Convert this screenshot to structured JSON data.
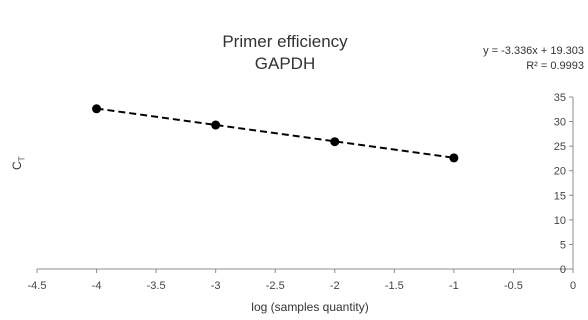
{
  "chart_data": {
    "type": "scatter",
    "title": "Primer efficiency",
    "subtitle": "GAPDH",
    "xlabel": "log (samples quantity)",
    "ylabel": "C",
    "ylabel_subscript": "T",
    "xlim": [
      -4.5,
      0
    ],
    "ylim": [
      0,
      35
    ],
    "xticks": [
      "-4.5",
      "-4",
      "-3.5",
      "-3",
      "-2.5",
      "-2",
      "-1.5",
      "-1",
      "-0.5",
      "0"
    ],
    "yticks": [
      "0",
      "5",
      "10",
      "15",
      "20",
      "25",
      "30",
      "35"
    ],
    "grid": false,
    "series": [
      {
        "x": [
          -4,
          -3,
          -2,
          -1
        ],
        "y": [
          32.6,
          29.3,
          25.9,
          22.6
        ]
      }
    ],
    "trendline": {
      "type": "linear",
      "slope": -3.336,
      "intercept": 19.303,
      "style": "dashed",
      "equation": "y = -3.336x + 19.303",
      "r_squared": "R² = 0.9993"
    }
  }
}
